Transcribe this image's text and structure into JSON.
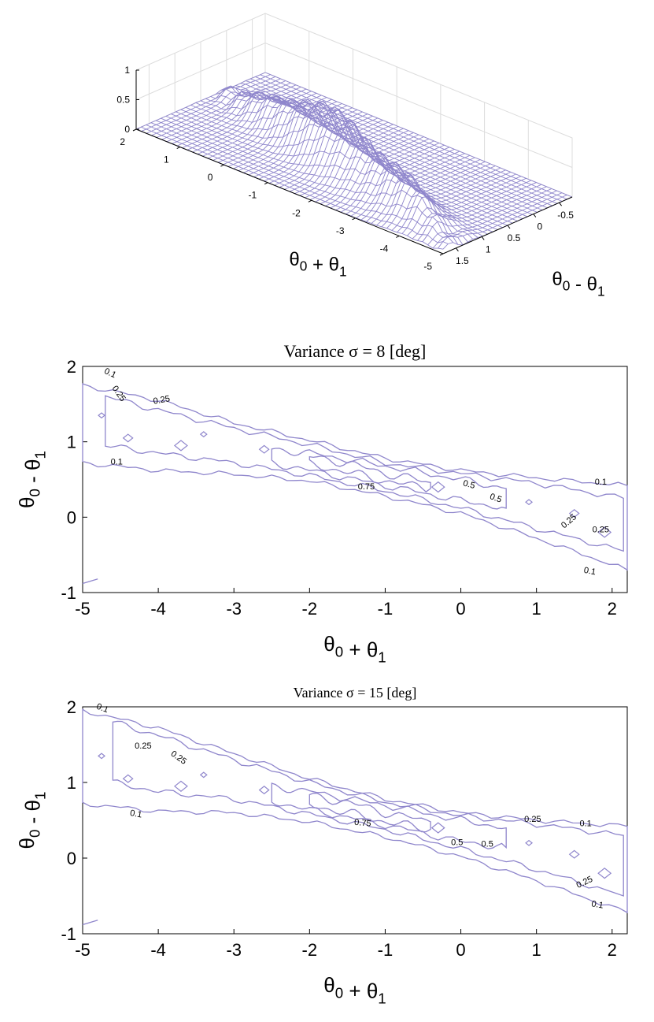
{
  "colors": {
    "surface": "#8f86cc",
    "contour": "#8f86cc",
    "axis": "#000000",
    "grid": "#dcdcdc"
  },
  "chart_data": [
    {
      "type": "surface",
      "title": "",
      "xlabel": "θ0 + θ1",
      "ylabel": "θ0 - θ1",
      "zlabel": "",
      "x_ticks": [
        "2",
        "1",
        "0",
        "-1",
        "-2",
        "-3",
        "-4",
        "-5"
      ],
      "y_ticks": [
        "-0.5",
        "0",
        "0.5",
        "1",
        "1.5"
      ],
      "z_ticks": [
        "0",
        "0.5",
        "1"
      ],
      "xlim": [
        -5,
        2.2
      ],
      "ylim": [
        -1,
        2
      ],
      "zlim": [
        0,
        1
      ],
      "peak": {
        "x": -1.2,
        "y": 0.6,
        "z": 0.95
      },
      "ridge_line": {
        "x0": 0.48,
        "slope": -0.2
      }
    },
    {
      "type": "contour",
      "title": "Variance σ = 8 [deg]",
      "xlabel": "θ0 + θ1",
      "ylabel": "θ0 - θ1",
      "xlim": [
        -5,
        2.2
      ],
      "ylim": [
        -1,
        2
      ],
      "x_ticks": [
        "-5",
        "-4",
        "-3",
        "-2",
        "-1",
        "0",
        "1",
        "2"
      ],
      "y_ticks": [
        "-1",
        "0",
        "1",
        "2"
      ],
      "levels": [
        0.1,
        0.25,
        0.5,
        0.75
      ],
      "level_labels": [
        "0.1",
        "0.25",
        "0.25",
        "0.1",
        "0.75",
        "0.5",
        "0.5",
        "0.1",
        "0.25",
        "0.25",
        "0.1"
      ],
      "contours": [
        {
          "level": 0.1,
          "upper": [
            [
              -5,
              1.75
            ],
            [
              -4,
              1.55
            ],
            [
              -3,
              1.25
            ],
            [
              -2,
              1.02
            ],
            [
              -1,
              0.78
            ],
            [
              0,
              0.62
            ],
            [
              1,
              0.52
            ],
            [
              2.2,
              0.42
            ]
          ],
          "lower": [
            [
              -5,
              0.72
            ],
            [
              -4,
              0.62
            ],
            [
              -3,
              0.57
            ],
            [
              -2,
              0.48
            ],
            [
              -1,
              0.28
            ],
            [
              0,
              0.05
            ],
            [
              1,
              -0.28
            ],
            [
              2.2,
              -0.7
            ]
          ]
        },
        {
          "level": 0.25,
          "upper": [
            [
              -4.7,
              1.6
            ],
            [
              -4,
              1.42
            ],
            [
              -3,
              1.18
            ],
            [
              -2,
              0.96
            ],
            [
              -1,
              0.72
            ],
            [
              0,
              0.58
            ],
            [
              1,
              0.45
            ],
            [
              2.15,
              0.25
            ]
          ],
          "lower": [
            [
              -4.7,
              0.95
            ],
            [
              -4,
              0.85
            ],
            [
              -3,
              0.72
            ],
            [
              -2,
              0.55
            ],
            [
              -1,
              0.35
            ],
            [
              0,
              0.12
            ],
            [
              1,
              -0.15
            ],
            [
              2.15,
              -0.45
            ]
          ]
        },
        {
          "level": 0.5,
          "upper": [
            [
              -2.5,
              0.9
            ],
            [
              -2,
              0.85
            ],
            [
              -1,
              0.68
            ],
            [
              0,
              0.5
            ],
            [
              0.6,
              0.38
            ]
          ],
          "lower": [
            [
              -2.5,
              0.72
            ],
            [
              -2,
              0.62
            ],
            [
              -1,
              0.42
            ],
            [
              0,
              0.22
            ],
            [
              0.6,
              0.12
            ]
          ]
        },
        {
          "level": 0.75,
          "upper": [
            [
              -2,
              0.8
            ],
            [
              -1.5,
              0.72
            ],
            [
              -1,
              0.58
            ],
            [
              -0.4,
              0.46
            ]
          ],
          "lower": [
            [
              -2,
              0.7
            ],
            [
              -1.5,
              0.6
            ],
            [
              -1,
              0.48
            ],
            [
              -0.4,
              0.38
            ]
          ]
        }
      ]
    },
    {
      "type": "contour",
      "title": "Variance σ = 15 [deg]",
      "xlabel": "θ0 + θ1",
      "ylabel": "θ0 - θ1",
      "xlim": [
        -5,
        2.2
      ],
      "ylim": [
        -1,
        2
      ],
      "x_ticks": [
        "-5",
        "-4",
        "-3",
        "-2",
        "-1",
        "0",
        "1",
        "2"
      ],
      "y_ticks": [
        "-1",
        "0",
        "1",
        "2"
      ],
      "levels": [
        0.1,
        0.25,
        0.5,
        0.75
      ],
      "level_labels": [
        "0.1",
        "0.25",
        "0.25",
        "0.1",
        "0.75",
        "0.5",
        "0.5",
        "0.25",
        "0.1",
        "0.25",
        "0.1"
      ],
      "contours": [
        {
          "level": 0.1,
          "upper": [
            [
              -5,
              1.95
            ],
            [
              -4,
              1.72
            ],
            [
              -3,
              1.38
            ],
            [
              -2,
              1.05
            ],
            [
              -1,
              0.78
            ],
            [
              0,
              0.6
            ],
            [
              1,
              0.5
            ],
            [
              2.2,
              0.42
            ]
          ],
          "lower": [
            [
              -5,
              0.72
            ],
            [
              -4,
              0.62
            ],
            [
              -3,
              0.6
            ],
            [
              -2,
              0.48
            ],
            [
              -1,
              0.28
            ],
            [
              0,
              0.02
            ],
            [
              1,
              -0.3
            ],
            [
              2.2,
              -0.72
            ]
          ]
        },
        {
          "level": 0.25,
          "upper": [
            [
              -4.6,
              1.8
            ],
            [
              -4,
              1.62
            ],
            [
              -3,
              1.3
            ],
            [
              -2,
              1.0
            ],
            [
              -1,
              0.74
            ],
            [
              0,
              0.56
            ],
            [
              1,
              0.45
            ],
            [
              2.15,
              0.3
            ]
          ],
          "lower": [
            [
              -4.6,
              1.0
            ],
            [
              -4,
              0.88
            ],
            [
              -3,
              0.78
            ],
            [
              -2,
              0.58
            ],
            [
              -1,
              0.38
            ],
            [
              0,
              0.12
            ],
            [
              1,
              -0.15
            ],
            [
              2.15,
              -0.5
            ]
          ]
        },
        {
          "level": 0.5,
          "upper": [
            [
              -2.5,
              0.95
            ],
            [
              -2,
              0.88
            ],
            [
              -1,
              0.7
            ],
            [
              0,
              0.5
            ],
            [
              0.6,
              0.4
            ]
          ],
          "lower": [
            [
              -2.5,
              0.75
            ],
            [
              -2,
              0.64
            ],
            [
              -1,
              0.44
            ],
            [
              0,
              0.22
            ],
            [
              0.6,
              0.14
            ]
          ]
        },
        {
          "level": 0.75,
          "upper": [
            [
              -2,
              0.82
            ],
            [
              -1.5,
              0.74
            ],
            [
              -1,
              0.6
            ],
            [
              -0.4,
              0.48
            ]
          ],
          "lower": [
            [
              -2,
              0.7
            ],
            [
              -1.5,
              0.6
            ],
            [
              -1,
              0.48
            ],
            [
              -0.4,
              0.38
            ]
          ]
        }
      ]
    }
  ]
}
